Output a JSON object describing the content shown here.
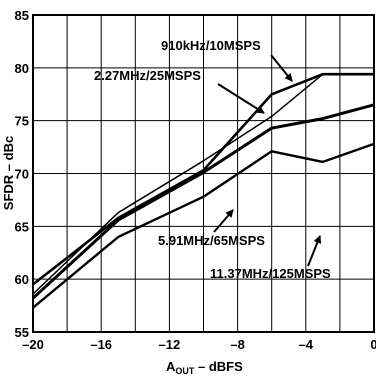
{
  "chart_data": {
    "type": "line",
    "xlabel_main": "A",
    "xlabel_sub": "OUT",
    "xlabel_rest": " – dBFS",
    "ylabel": "SFDR – dBc",
    "xlim": [
      -20,
      0
    ],
    "ylim": [
      55,
      85
    ],
    "x_ticks": [
      -20,
      -16,
      -12,
      -8,
      -4,
      0
    ],
    "x_tick_labels": [
      "–20",
      "–16",
      "–12",
      "–8",
      "–4",
      "0"
    ],
    "y_ticks": [
      55,
      60,
      65,
      70,
      75,
      80,
      85
    ],
    "y_tick_labels": [
      "55",
      "60",
      "65",
      "70",
      "75",
      "80",
      "85"
    ],
    "grid": true,
    "series": [
      {
        "name": "910kHz/10MSPS",
        "x": [
          -20,
          -15,
          -10,
          -6,
          -3,
          0
        ],
        "y": [
          58.6,
          66.3,
          71.2,
          75.4,
          79.4,
          79.4
        ]
      },
      {
        "name": "2.27MHz/25MSPS",
        "x": [
          -20,
          -15,
          -10,
          -6,
          -3,
          0
        ],
        "y": [
          59.5,
          65.8,
          70.3,
          77.5,
          79.4,
          79.4
        ]
      },
      {
        "name": "5.91MHz/65MSPS",
        "x": [
          -20,
          -15,
          -10,
          -6,
          -3,
          0
        ],
        "y": [
          58.2,
          65.6,
          70.1,
          74.3,
          75.2,
          76.5
        ]
      },
      {
        "name": "11.37MHz/125MSPS",
        "x": [
          -20,
          -15,
          -10,
          -6,
          -3,
          0
        ],
        "y": [
          57.3,
          64.0,
          67.8,
          72.1,
          71.1,
          72.8
        ]
      }
    ]
  }
}
